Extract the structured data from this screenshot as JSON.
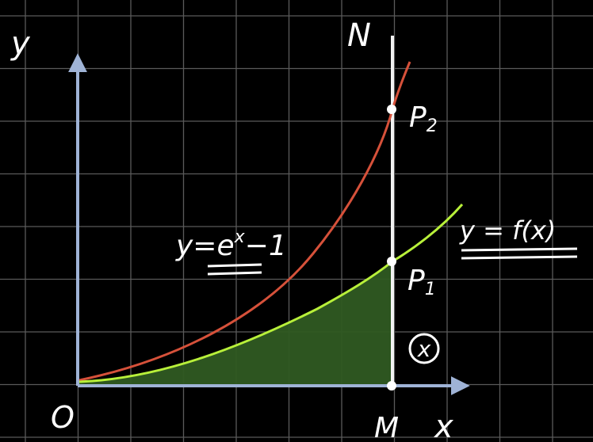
{
  "labels": {
    "y_axis": "y",
    "x_axis": "x",
    "origin": "O",
    "point_m": "M",
    "point_n": "N",
    "point_p1": "P",
    "point_p1_sub": "1",
    "point_p2": "P",
    "point_p2_sub": "2",
    "circled_x": "x",
    "curve_exp": "y=e",
    "curve_exp_sup": "x",
    "curve_exp_tail": "−1",
    "curve_f": "y = f(x)"
  },
  "colors": {
    "background": "#000000",
    "grid": "#5a5a5a",
    "axes": "#9fb3d6",
    "exp_curve": "#d6513a",
    "f_curve": "#b8f03a",
    "shaded_area": "#2f5a22",
    "vertical_line": "#f2f2f2",
    "ink": "#ffffff"
  }
}
